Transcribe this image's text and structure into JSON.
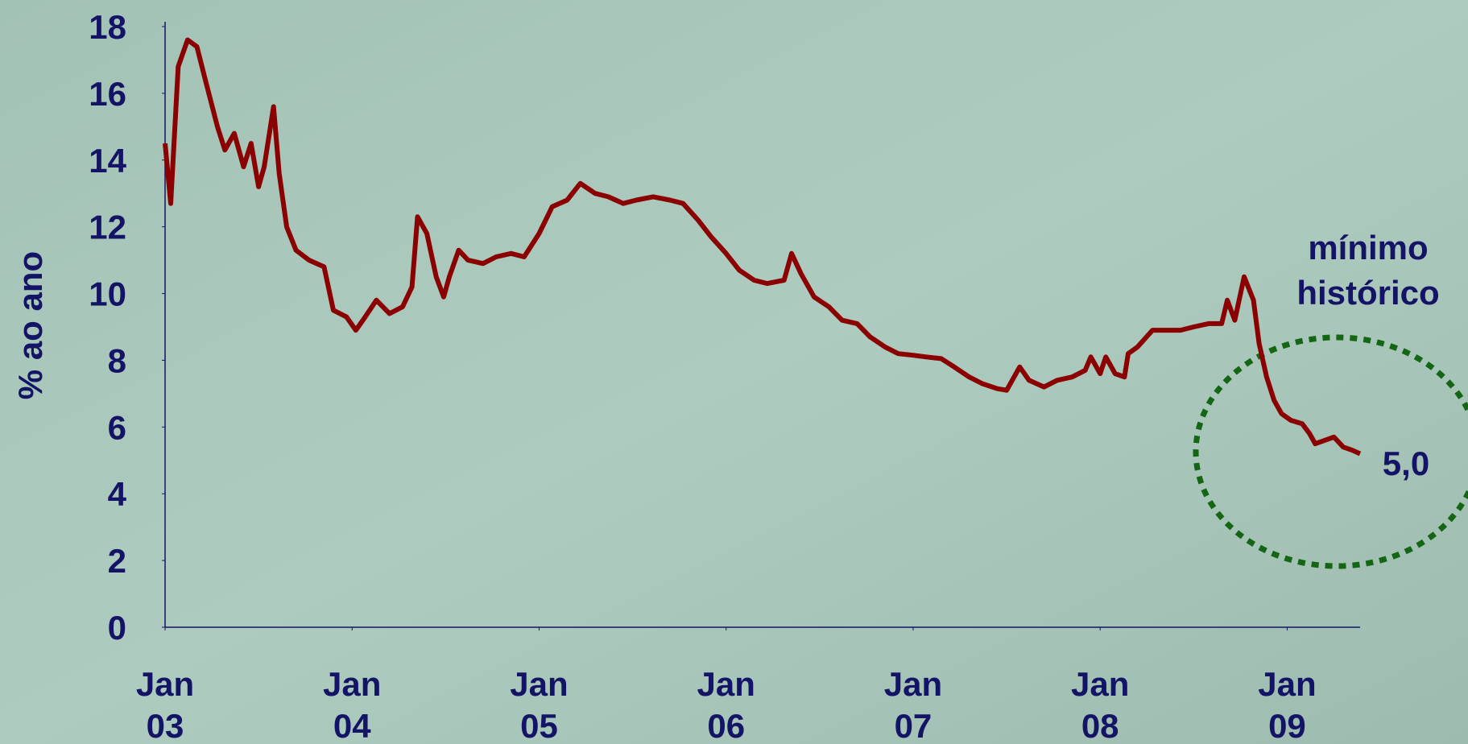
{
  "chart_data": {
    "type": "line",
    "y_label": "% ao ano",
    "annotations": [
      "mínimo\nhistórico",
      "5,0"
    ],
    "xlim": [
      2003,
      2009.39
    ],
    "xticks": [
      {
        "value": 2003,
        "label": "Jan\n03"
      },
      {
        "value": 2004,
        "label": "Jan\n04"
      },
      {
        "value": 2005,
        "label": "Jan\n05"
      },
      {
        "value": 2006,
        "label": "Jan\n06"
      },
      {
        "value": 2007,
        "label": "Jan\n07"
      },
      {
        "value": 2008,
        "label": "Jan\n08"
      },
      {
        "value": 2009,
        "label": "Jan\n09"
      }
    ],
    "ylim": [
      0,
      18
    ],
    "yticks": [
      0,
      2,
      4,
      6,
      8,
      10,
      12,
      14,
      16,
      18
    ],
    "x": [
      2003.0,
      2003.03,
      2003.07,
      2003.12,
      2003.17,
      2003.22,
      2003.28,
      2003.32,
      2003.37,
      2003.42,
      2003.46,
      2003.5,
      2003.53,
      2003.58,
      2003.61,
      2003.65,
      2003.7,
      2003.77,
      2003.85,
      2003.9,
      2003.97,
      2004.02,
      2004.07,
      2004.13,
      2004.2,
      2004.27,
      2004.32,
      2004.35,
      2004.4,
      2004.45,
      2004.49,
      2004.52,
      2004.57,
      2004.62,
      2004.7,
      2004.77,
      2004.85,
      2004.92,
      2005.0,
      2005.07,
      2005.15,
      2005.22,
      2005.3,
      2005.37,
      2005.45,
      2005.52,
      2005.61,
      2005.7,
      2005.77,
      2005.85,
      2005.92,
      2006.0,
      2006.07,
      2006.15,
      2006.22,
      2006.31,
      2006.35,
      2006.4,
      2006.47,
      2006.55,
      2006.62,
      2006.7,
      2006.77,
      2006.85,
      2006.92,
      2007.0,
      2007.07,
      2007.15,
      2007.22,
      2007.3,
      2007.37,
      2007.45,
      2007.5,
      2007.57,
      2007.62,
      2007.7,
      2007.77,
      2007.85,
      2007.92,
      2007.95,
      2008.0,
      2008.03,
      2008.08,
      2008.13,
      2008.15,
      2008.2,
      2008.28,
      2008.35,
      2008.43,
      2008.5,
      2008.58,
      2008.65,
      2008.68,
      2008.72,
      2008.77,
      2008.82,
      2008.85,
      2008.89,
      2008.93,
      2008.97,
      2009.02,
      2009.08,
      2009.12,
      2009.15,
      2009.2,
      2009.25,
      2009.3,
      2009.35,
      2009.39
    ],
    "series": [
      {
        "color": "#8b0000",
        "values": [
          14.5,
          12.7,
          16.8,
          17.6,
          17.4,
          16.3,
          15,
          14.3,
          14.8,
          13.8,
          14.5,
          13.2,
          13.8,
          15.6,
          13.6,
          12,
          11.3,
          11,
          10.8,
          9.5,
          9.3,
          8.9,
          9.3,
          9.8,
          9.4,
          9.6,
          10.2,
          12.3,
          11.8,
          10.5,
          9.9,
          10.5,
          11.3,
          11,
          10.9,
          11.1,
          11.2,
          11.1,
          11.8,
          12.6,
          12.8,
          13.3,
          13,
          12.9,
          12.7,
          12.8,
          12.9,
          12.8,
          12.7,
          12.2,
          11.7,
          11.2,
          10.7,
          10.4,
          10.3,
          10.4,
          11.2,
          10.6,
          9.9,
          9.6,
          9.2,
          9.1,
          8.7,
          8.4,
          8.2,
          8.15,
          8.1,
          8.05,
          7.8,
          7.5,
          7.3,
          7.15,
          7.1,
          7.8,
          7.4,
          7.2,
          7.4,
          7.5,
          7.7,
          8.1,
          7.6,
          8.1,
          7.6,
          7.5,
          8.2,
          8.4,
          8.9,
          8.9,
          8.9,
          9,
          9.1,
          9.1,
          9.8,
          9.2,
          10.5,
          9.8,
          8.5,
          7.5,
          6.8,
          6.4,
          6.2,
          6.1,
          5.8,
          5.5,
          5.6,
          5.7,
          5.4,
          5.3,
          5.2
        ]
      }
    ]
  }
}
